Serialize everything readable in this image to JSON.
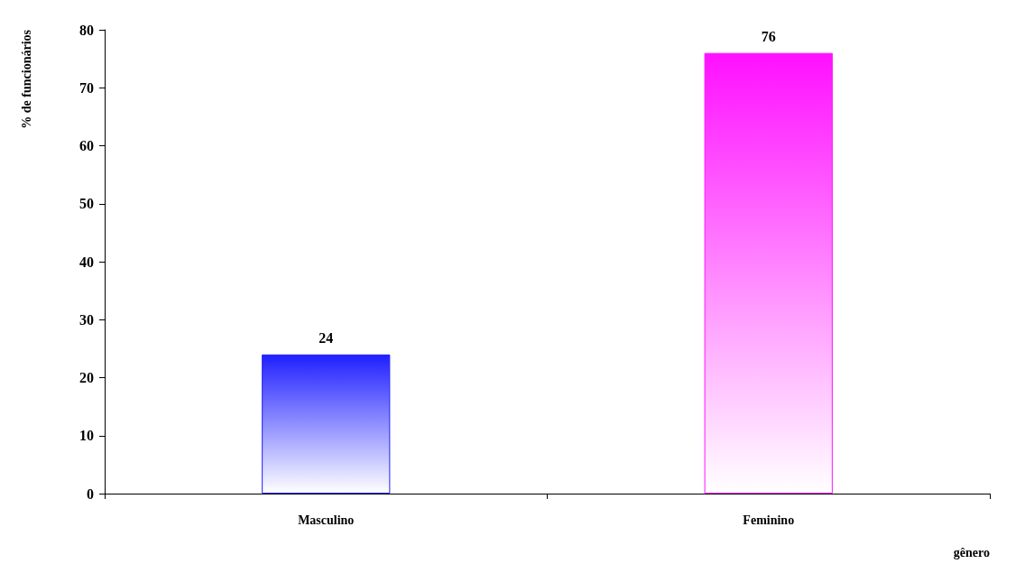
{
  "chart_data": {
    "type": "bar",
    "ylabel": "% de funcionários",
    "xlabel": "gênero",
    "categories": [
      "Masculino",
      "Feminino"
    ],
    "values": [
      24,
      76
    ],
    "colors": [
      "#2020ff",
      "#ff10ff"
    ],
    "ylim": [
      0,
      80
    ],
    "yticks": [
      0,
      10,
      20,
      30,
      40,
      50,
      60,
      70,
      80
    ],
    "grid": false,
    "data_labels": true
  }
}
